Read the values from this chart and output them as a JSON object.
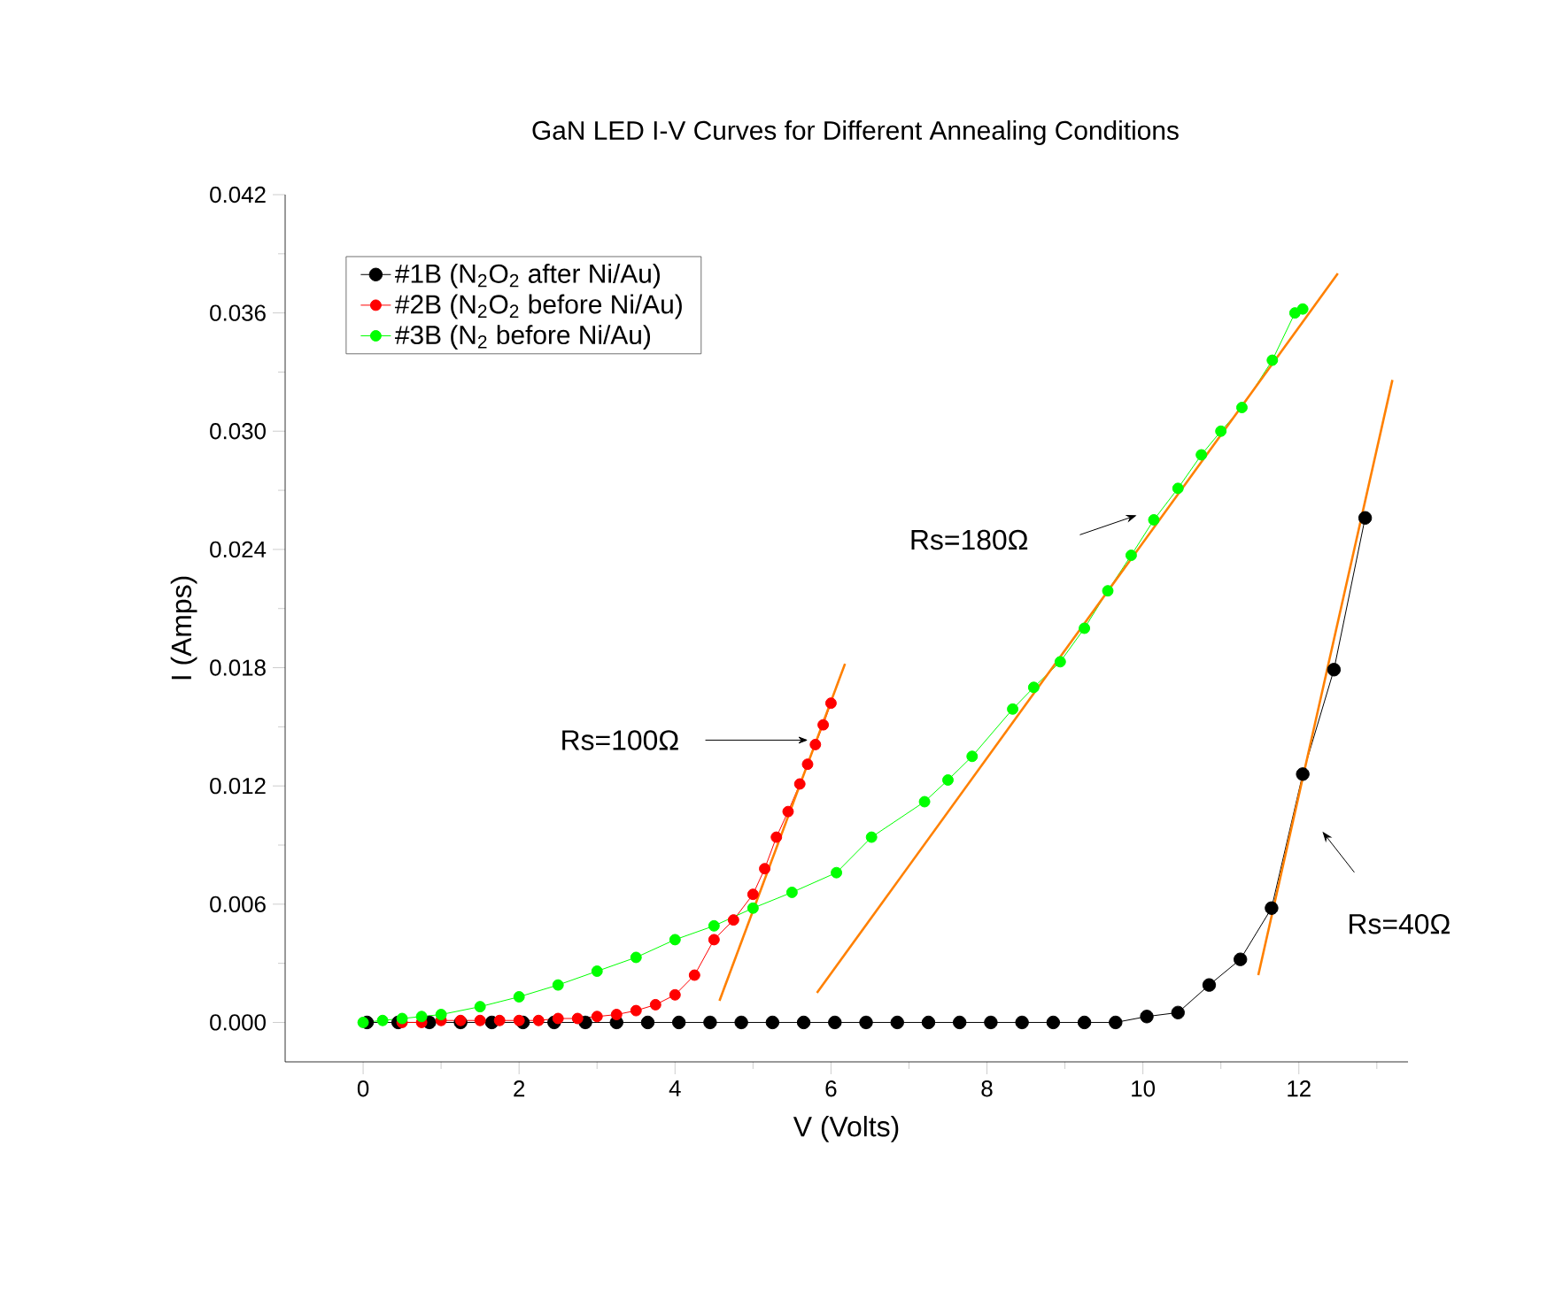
{
  "chart_data": {
    "type": "line",
    "title": "GaN LED I-V Curves for Different Annealing Conditions",
    "xlabel": "V (Volts)",
    "ylabel": "I (Amps)",
    "xlim": [
      -1,
      13.4
    ],
    "ylim": [
      -0.002,
      0.042
    ],
    "xticks": [
      0,
      {
        "value": 1,
        "label": null
      },
      2,
      {
        "value": 3,
        "label": null
      },
      4,
      {
        "value": 5,
        "label": null
      },
      6,
      {
        "value": 7,
        "label": null
      },
      8,
      {
        "value": 9,
        "label": null
      },
      10,
      {
        "value": 11,
        "label": null
      },
      12,
      {
        "value": 13,
        "label": null
      }
    ],
    "yticks": [
      {
        "value": 0,
        "label": "0.000"
      },
      {
        "value": 0.003,
        "label": null
      },
      {
        "value": 0.006,
        "label": "0.006"
      },
      {
        "value": 0.009,
        "label": null
      },
      {
        "value": 0.012,
        "label": "0.012"
      },
      {
        "value": 0.015,
        "label": null
      },
      {
        "value": 0.018,
        "label": "0.018"
      },
      {
        "value": 0.021,
        "label": null
      },
      {
        "value": 0.024,
        "label": "0.024"
      },
      {
        "value": 0.027,
        "label": null
      },
      {
        "value": 0.03,
        "label": "0.030"
      },
      {
        "value": 0.033,
        "label": null
      },
      {
        "value": 0.036,
        "label": "0.036"
      },
      {
        "value": 0.039,
        "label": null
      },
      {
        "value": 0.042,
        "label": "0.042"
      }
    ],
    "marker": "circle",
    "legend": "top left",
    "grid": false,
    "series": [
      {
        "name": "#1B (N$_{2}$O$_{2}$ after Ni/Au)",
        "color": "#000000",
        "x": [
          0.05,
          0.45,
          0.85,
          1.25,
          1.65,
          2.05,
          2.45,
          2.85,
          3.25,
          3.65,
          4.05,
          4.45,
          4.85,
          5.25,
          5.65,
          6.05,
          6.45,
          6.85,
          7.25,
          7.65,
          8.05,
          8.45,
          8.85,
          9.25,
          9.65,
          10.05,
          10.45,
          10.85,
          11.25,
          11.65,
          12.05,
          12.45,
          12.85
        ],
        "values": [
          0,
          0,
          0,
          0,
          0,
          0,
          0,
          0,
          0,
          0,
          0,
          0,
          0,
          0,
          0,
          0,
          0,
          0,
          0,
          0,
          0,
          0,
          0,
          0,
          0,
          0.0003,
          0.0005,
          0.0019,
          0.0032,
          0.0058,
          0.0126,
          0.0179,
          0.0256
        ]
      },
      {
        "name": "#2B (N$_{2}$O$_{2}$ before Ni/Au)",
        "color": "#ff0000",
        "x": [
          0.5,
          0.75,
          1.0,
          1.25,
          1.5,
          1.75,
          2.0,
          2.25,
          2.5,
          2.75,
          3.0,
          3.25,
          3.5,
          3.75,
          4.0,
          4.25,
          4.5,
          4.75,
          5.0,
          5.15,
          5.3,
          5.45,
          5.6,
          5.7,
          5.8,
          5.9,
          6.0
        ],
        "values": [
          0,
          0,
          0.0001,
          0.0001,
          0.0001,
          0.0001,
          0.0001,
          0.0001,
          0.0002,
          0.0002,
          0.0003,
          0.0004,
          0.0006,
          0.0009,
          0.0014,
          0.0024,
          0.0042,
          0.0052,
          0.0065,
          0.0078,
          0.0094,
          0.0107,
          0.0121,
          0.0131,
          0.0141,
          0.0151,
          0.0162
        ]
      },
      {
        "name": "#3B (N$_{2}$ before Ni/Au)",
        "color": "#00ff00",
        "x": [
          0,
          0.25,
          0.5,
          0.75,
          1,
          1.5,
          2,
          2.5,
          3,
          3.5,
          4,
          4.5,
          5,
          5.5,
          6.07,
          6.52,
          7.2,
          7.5,
          7.81,
          8.33,
          8.6,
          8.94,
          9.25,
          9.55,
          9.85,
          10.14,
          10.45,
          10.75,
          11.0,
          11.27,
          11.66,
          11.95,
          12.05
        ],
        "values": [
          0,
          0.0001,
          0.0002,
          0.0003,
          0.0004,
          0.0008,
          0.0013,
          0.0019,
          0.0026,
          0.0033,
          0.0042,
          0.0049,
          0.0058,
          0.0066,
          0.0076,
          0.0094,
          0.0112,
          0.0123,
          0.0135,
          0.0159,
          0.017,
          0.0183,
          0.02,
          0.0219,
          0.0237,
          0.0255,
          0.0271,
          0.0288,
          0.03,
          0.0312,
          0.0336,
          0.036,
          0.0362
        ]
      },
      {
        "type": "line",
        "marker": "none",
        "color": "#ff8000",
        "x": [
          4.57,
          6.18
        ],
        "values": [
          0.0011,
          0.0182
        ]
      },
      {
        "type": "line",
        "marker": "none",
        "color": "#ff8000",
        "x": [
          5.82,
          12.5
        ],
        "values": [
          0.0015,
          0.038
        ]
      },
      {
        "type": "line",
        "marker": "none",
        "color": "#ff8000",
        "x": [
          11.48,
          13.2
        ],
        "values": [
          0.0024,
          0.0326
        ]
      }
    ],
    "annotations": [
      "Rs=100Ω",
      "Rs=180Ω",
      "Rs=40Ω"
    ]
  }
}
